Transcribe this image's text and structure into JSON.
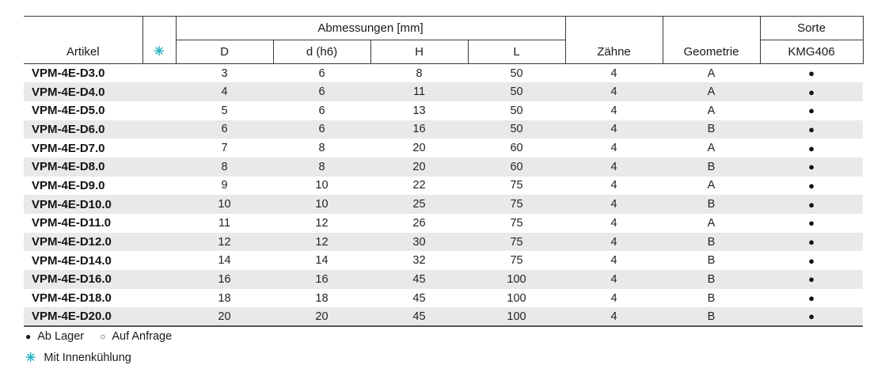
{
  "symbols": {
    "snowflake": "✳",
    "filled_dot": "●",
    "open_dot": "○"
  },
  "colors": {
    "accent_teal": "#2ab2c4",
    "row_alt_gray": "#e9e9eb",
    "line_dark": "#3a3a3a",
    "thick_bottom_line": "#56575b"
  },
  "table": {
    "header": {
      "artikel": "Artikel",
      "abmessungen_group": "Abmessungen [mm]",
      "dim_columns": [
        "D",
        "d (h6)",
        "H",
        "L"
      ],
      "zaehne": "Zähne",
      "geometrie": "Geometrie",
      "sorte": "Sorte",
      "sorte_value": "KMG406"
    },
    "rows": [
      {
        "artikel": "VPM-4E-D3.0",
        "d": "3",
        "d_h6": "6",
        "h": "8",
        "l": "50",
        "zaehne": "4",
        "geometrie": "A",
        "kmg406": "●"
      },
      {
        "artikel": "VPM-4E-D4.0",
        "d": "4",
        "d_h6": "6",
        "h": "11",
        "l": "50",
        "zaehne": "4",
        "geometrie": "A",
        "kmg406": "●"
      },
      {
        "artikel": "VPM-4E-D5.0",
        "d": "5",
        "d_h6": "6",
        "h": "13",
        "l": "50",
        "zaehne": "4",
        "geometrie": "A",
        "kmg406": "●"
      },
      {
        "artikel": "VPM-4E-D6.0",
        "d": "6",
        "d_h6": "6",
        "h": "16",
        "l": "50",
        "zaehne": "4",
        "geometrie": "B",
        "kmg406": "●"
      },
      {
        "artikel": "VPM-4E-D7.0",
        "d": "7",
        "d_h6": "8",
        "h": "20",
        "l": "60",
        "zaehne": "4",
        "geometrie": "A",
        "kmg406": "●"
      },
      {
        "artikel": "VPM-4E-D8.0",
        "d": "8",
        "d_h6": "8",
        "h": "20",
        "l": "60",
        "zaehne": "4",
        "geometrie": "B",
        "kmg406": "●"
      },
      {
        "artikel": "VPM-4E-D9.0",
        "d": "9",
        "d_h6": "10",
        "h": "22",
        "l": "75",
        "zaehne": "4",
        "geometrie": "A",
        "kmg406": "●"
      },
      {
        "artikel": "VPM-4E-D10.0",
        "d": "10",
        "d_h6": "10",
        "h": "25",
        "l": "75",
        "zaehne": "4",
        "geometrie": "B",
        "kmg406": "●"
      },
      {
        "artikel": "VPM-4E-D11.0",
        "d": "11",
        "d_h6": "12",
        "h": "26",
        "l": "75",
        "zaehne": "4",
        "geometrie": "A",
        "kmg406": "●"
      },
      {
        "artikel": "VPM-4E-D12.0",
        "d": "12",
        "d_h6": "12",
        "h": "30",
        "l": "75",
        "zaehne": "4",
        "geometrie": "B",
        "kmg406": "●"
      },
      {
        "artikel": "VPM-4E-D14.0",
        "d": "14",
        "d_h6": "14",
        "h": "32",
        "l": "75",
        "zaehne": "4",
        "geometrie": "B",
        "kmg406": "●"
      },
      {
        "artikel": "VPM-4E-D16.0",
        "d": "16",
        "d_h6": "16",
        "h": "45",
        "l": "100",
        "zaehne": "4",
        "geometrie": "B",
        "kmg406": "●"
      },
      {
        "artikel": "VPM-4E-D18.0",
        "d": "18",
        "d_h6": "18",
        "h": "45",
        "l": "100",
        "zaehne": "4",
        "geometrie": "B",
        "kmg406": "●"
      },
      {
        "artikel": "VPM-4E-D20.0",
        "d": "20",
        "d_h6": "20",
        "h": "45",
        "l": "100",
        "zaehne": "4",
        "geometrie": "B",
        "kmg406": "●"
      }
    ]
  },
  "legend": {
    "ab_lager": "Ab Lager",
    "auf_anfrage": "Auf Anfrage",
    "mit_innenkuehlung": "Mit Innenkühlung"
  }
}
